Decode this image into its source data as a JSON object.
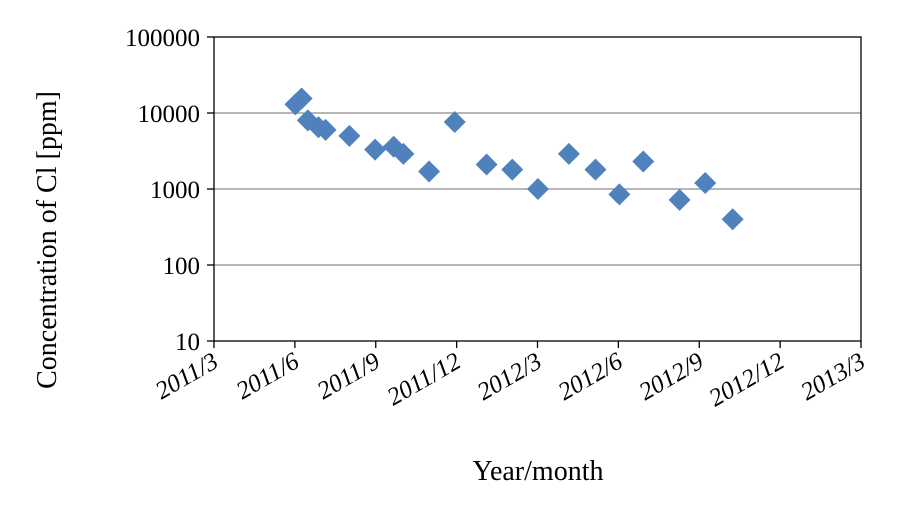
{
  "chart_data": {
    "type": "scatter",
    "xlabel": "Year/month",
    "ylabel": "Concentration of Cl [ppm]",
    "yscale": "log",
    "ylim": [
      10,
      100000
    ],
    "y_ticks": [
      "10",
      "100",
      "1000",
      "10000",
      "100000"
    ],
    "xlim": [
      "2011-03",
      "2013-03"
    ],
    "x_ticks": [
      "2011/3",
      "2011/6",
      "2011/9",
      "2011/12",
      "2012/3",
      "2012/6",
      "2012/9",
      "2012/12",
      "2013/3"
    ],
    "grid": "horizontal",
    "legend": "none",
    "marker": "diamond",
    "color": "#4f81bd",
    "points": [
      {
        "x": "2011-06-01",
        "y": 13000
      },
      {
        "x": "2011-06-08",
        "y": 15500
      },
      {
        "x": "2011-06-15",
        "y": 8000
      },
      {
        "x": "2011-06-27",
        "y": 6500
      },
      {
        "x": "2011-07-05",
        "y": 6000
      },
      {
        "x": "2011-08-01",
        "y": 5000
      },
      {
        "x": "2011-08-30",
        "y": 3300
      },
      {
        "x": "2011-09-20",
        "y": 3600
      },
      {
        "x": "2011-10-01",
        "y": 2900
      },
      {
        "x": "2011-10-30",
        "y": 1700
      },
      {
        "x": "2011-11-28",
        "y": 7600
      },
      {
        "x": "2012-01-03",
        "y": 2100
      },
      {
        "x": "2012-02-01",
        "y": 1800
      },
      {
        "x": "2012-03-01",
        "y": 1000
      },
      {
        "x": "2012-04-05",
        "y": 2900
      },
      {
        "x": "2012-05-05",
        "y": 1800
      },
      {
        "x": "2012-06-01",
        "y": 850
      },
      {
        "x": "2012-06-28",
        "y": 2300
      },
      {
        "x": "2012-08-08",
        "y": 720
      },
      {
        "x": "2012-09-06",
        "y": 1200
      },
      {
        "x": "2012-10-07",
        "y": 400
      }
    ]
  }
}
